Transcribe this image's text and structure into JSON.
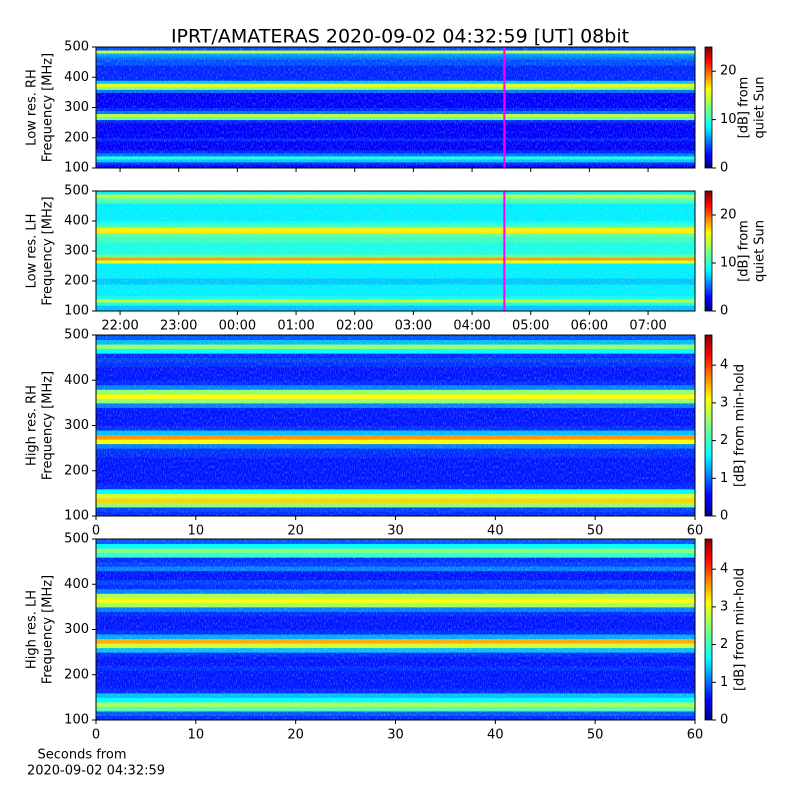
{
  "chart_data": [
    {
      "type": "heatmap",
      "title": "IPRT/AMATERAS 2020-09-02 04:32:59 [UT]   08bit",
      "ylabel": [
        "Low res. RH",
        "Frequency [MHz]"
      ],
      "xlim": [
        21.59,
        31.8
      ],
      "ylim": [
        100,
        500
      ],
      "yticks": [
        100,
        200,
        300,
        400,
        500
      ],
      "y_bins": [
        100,
        110,
        120,
        130,
        140,
        150,
        160,
        170,
        180,
        190,
        200,
        210,
        220,
        230,
        240,
        250,
        260,
        270,
        280,
        290,
        300,
        310,
        320,
        330,
        340,
        350,
        360,
        370,
        380,
        390,
        400,
        410,
        420,
        430,
        440,
        450,
        460,
        470,
        480,
        490,
        500
      ],
      "values": [
        3,
        4,
        8,
        10,
        6,
        4,
        3,
        3,
        3,
        4,
        3,
        3,
        3,
        3,
        3,
        4,
        12,
        14,
        6,
        4,
        3,
        3,
        3,
        3,
        3,
        6,
        13,
        15,
        8,
        4,
        4,
        4,
        4,
        4,
        5,
        5,
        6,
        7,
        14,
        5
      ],
      "clim": [
        0,
        25
      ],
      "cticks": [
        0,
        10,
        20
      ],
      "clabel": [
        "[dB] from",
        "quiet Sun"
      ],
      "cursor_x": 28.55,
      "cursor_color": "#ff00ff"
    },
    {
      "type": "heatmap",
      "ylabel": [
        "Low res. LH",
        "Frequency [MHz]"
      ],
      "xlim": [
        21.59,
        31.8
      ],
      "xticks": [
        {
          "value": 22,
          "label": "22:00"
        },
        {
          "value": 23,
          "label": "23:00"
        },
        {
          "value": 24,
          "label": "00:00"
        },
        {
          "value": 25,
          "label": "01:00"
        },
        {
          "value": 26,
          "label": "02:00"
        },
        {
          "value": 27,
          "label": "03:00"
        },
        {
          "value": 28,
          "label": "04:00"
        },
        {
          "value": 29,
          "label": "05:00"
        },
        {
          "value": 30,
          "label": "06:00"
        },
        {
          "value": 31,
          "label": "07:00"
        }
      ],
      "ylim": [
        100,
        500
      ],
      "yticks": [
        100,
        200,
        300,
        400,
        500
      ],
      "y_bins": [
        100,
        110,
        120,
        130,
        140,
        150,
        160,
        170,
        180,
        190,
        200,
        210,
        220,
        230,
        240,
        250,
        260,
        270,
        280,
        290,
        300,
        310,
        320,
        330,
        340,
        350,
        360,
        370,
        380,
        390,
        400,
        410,
        420,
        430,
        440,
        450,
        460,
        470,
        480,
        490,
        500
      ],
      "values": [
        8,
        8,
        10,
        14,
        10,
        9,
        9,
        9,
        9,
        8,
        8,
        9,
        9,
        9,
        9,
        9,
        15,
        18,
        12,
        10,
        10,
        10,
        10,
        11,
        11,
        12,
        16,
        16,
        11,
        10,
        9,
        9,
        9,
        9,
        9,
        9,
        11,
        12,
        14,
        9
      ],
      "clim": [
        0,
        25
      ],
      "cticks": [
        0,
        10,
        20
      ],
      "clabel": [
        "[dB] from",
        "quiet Sun"
      ],
      "cursor_x": 28.55,
      "cursor_color": "#ff00ff"
    },
    {
      "type": "heatmap",
      "ylabel": [
        "High res. RH",
        "Frequency [MHz]"
      ],
      "xlim": [
        0,
        60
      ],
      "xticks": [
        0,
        10,
        20,
        30,
        40,
        50,
        60
      ],
      "ylim": [
        100,
        500
      ],
      "yticks": [
        100,
        200,
        300,
        400,
        500
      ],
      "y_bins": [
        100,
        110,
        120,
        130,
        140,
        150,
        160,
        170,
        180,
        190,
        200,
        210,
        220,
        230,
        240,
        250,
        260,
        270,
        280,
        290,
        300,
        310,
        320,
        330,
        340,
        350,
        360,
        370,
        380,
        390,
        400,
        410,
        420,
        430,
        440,
        450,
        460,
        470,
        480,
        490,
        500
      ],
      "values": [
        0.8,
        0.9,
        2.5,
        3.2,
        2.8,
        1.8,
        0.8,
        0.7,
        0.7,
        0.7,
        0.7,
        0.7,
        0.7,
        0.8,
        0.8,
        1.2,
        3,
        3.5,
        1.5,
        0.8,
        0.7,
        0.7,
        0.7,
        0.7,
        1.2,
        2.5,
        3,
        2.5,
        1.2,
        0.8,
        0.7,
        0.7,
        0.7,
        0.8,
        0.9,
        0.8,
        1.8,
        2.5,
        1.5,
        1
      ],
      "clim": [
        0,
        4.8
      ],
      "cticks": [
        0,
        1,
        2,
        3,
        4
      ],
      "clabel": [
        "[dB] from min-hold"
      ]
    },
    {
      "type": "heatmap",
      "ylabel": [
        "High res. LH",
        "Frequency [MHz]"
      ],
      "xlim": [
        0,
        60
      ],
      "xticks": [
        0,
        10,
        20,
        30,
        40,
        50,
        60
      ],
      "xlabel": [
        "Seconds from",
        "2020-09-02 04:32:59"
      ],
      "ylim": [
        100,
        500
      ],
      "yticks": [
        100,
        200,
        300,
        400,
        500
      ],
      "y_bins": [
        100,
        110,
        120,
        130,
        140,
        150,
        160,
        170,
        180,
        190,
        200,
        210,
        220,
        230,
        240,
        250,
        260,
        270,
        280,
        290,
        300,
        310,
        320,
        330,
        340,
        350,
        360,
        370,
        380,
        390,
        400,
        410,
        420,
        430,
        440,
        450,
        460,
        470,
        480,
        490,
        500
      ],
      "values": [
        0.8,
        1,
        2.2,
        2.6,
        1.8,
        1.5,
        0.8,
        0.7,
        0.7,
        0.7,
        0.7,
        0.8,
        0.7,
        0.7,
        0.8,
        1.5,
        2.8,
        3.4,
        1.4,
        0.8,
        0.7,
        0.7,
        0.7,
        0.8,
        1.2,
        2.6,
        3,
        2.6,
        1.2,
        0.8,
        0.9,
        0.7,
        0.7,
        1.2,
        0.9,
        0.8,
        2,
        2.4,
        1.8,
        1
      ],
      "clim": [
        0,
        4.8
      ],
      "cticks": [
        0,
        1,
        2,
        3,
        4
      ],
      "clabel": [
        "[dB] from min-hold"
      ]
    }
  ]
}
